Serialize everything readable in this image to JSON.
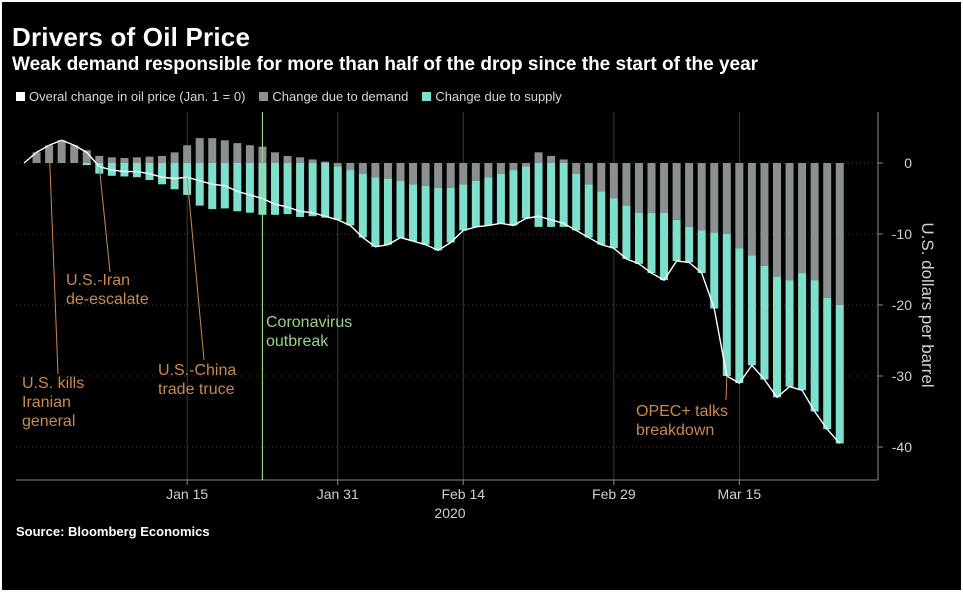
{
  "chart_data": {
    "type": "bar",
    "title": "Drivers of Oil Price",
    "subtitle": "Weak demand responsible for more than half of the drop since the start of the year",
    "legend": [
      "Overal change in oil price (Jan. 1 = 0)",
      "Change due to demand",
      "Change due to supply"
    ],
    "ylabel": "U.S. dollars per barrel",
    "xlabel": "2020",
    "ylim": [
      -42,
      8
    ],
    "yticks": [
      0,
      -10,
      -20,
      -30,
      -40
    ],
    "xtick_labels": [
      "Jan 15",
      "Jan 31",
      "Feb 14",
      "Feb 29",
      "Mar 15"
    ],
    "xtick_index": [
      13,
      25,
      35,
      47,
      57
    ],
    "source": "Source: Bloomberg Economics",
    "colors": {
      "overall": "#ffffff",
      "demand": "#8a8f8f",
      "supply": "#7ee0cc",
      "annotation": "#c98a4e",
      "coronavirus": "#9bd18a"
    },
    "series": [
      {
        "name": "Overal change in oil price (Jan. 1 = 0)",
        "values": [
          0,
          1.5,
          2.5,
          3.2,
          2.5,
          1.5,
          -0.5,
          -1.0,
          -1.2,
          -1.2,
          -1.5,
          -2.0,
          -2.2,
          -2.0,
          -2.5,
          -3.0,
          -3.2,
          -4.0,
          -4.5,
          -5.0,
          -5.8,
          -6.2,
          -6.8,
          -7.0,
          -7.5,
          -8.0,
          -8.8,
          -10.5,
          -11.8,
          -11.5,
          -10.5,
          -11.0,
          -11.5,
          -12.3,
          -11.2,
          -9.5,
          -9.0,
          -8.8,
          -8.5,
          -8.8,
          -7.8,
          -7.5,
          -8.0,
          -8.5,
          -9.5,
          -10.5,
          -11.5,
          -12.0,
          -13.5,
          -14.2,
          -15.5,
          -16.5,
          -13.8,
          -14.0,
          -15.5,
          -20.5,
          -30.0,
          -31.0,
          -28.5,
          -30.5,
          -33.0,
          -31.5,
          -32.0,
          -35.0,
          -37.5,
          -39.5
        ]
      },
      {
        "name": "Change due to demand",
        "values": [
          0,
          1.5,
          2.5,
          3.2,
          2.5,
          1.8,
          1.0,
          0.8,
          0.7,
          0.8,
          0.9,
          1.0,
          1.5,
          2.5,
          3.5,
          3.5,
          3.2,
          2.8,
          2.5,
          2.3,
          1.5,
          1.0,
          0.8,
          0.5,
          0.2,
          -0.5,
          -1.0,
          -1.5,
          -2.0,
          -2.2,
          -2.5,
          -3.0,
          -3.2,
          -3.5,
          -3.5,
          -3.0,
          -2.5,
          -2.0,
          -1.5,
          -1.0,
          -0.5,
          1.5,
          1.0,
          0.5,
          -1.5,
          -3.0,
          -4.0,
          -5.0,
          -6.0,
          -7.0,
          -7.0,
          -7.0,
          -8.0,
          -9.0,
          -9.5,
          -9.8,
          -10.0,
          -12.0,
          -13.0,
          -14.5,
          -16.0,
          -16.5,
          -15.5,
          -16.5,
          -19.0,
          -20.0
        ]
      },
      {
        "name": "Change due to supply",
        "values": [
          0,
          0,
          0,
          0,
          0,
          -0.3,
          -1.5,
          -1.8,
          -1.9,
          -2.0,
          -2.4,
          -3.0,
          -3.7,
          -4.5,
          -6.0,
          -6.5,
          -6.4,
          -6.8,
          -7.0,
          -7.3,
          -7.3,
          -7.2,
          -7.6,
          -7.5,
          -7.7,
          -7.5,
          -7.8,
          -9.0,
          -9.8,
          -9.3,
          -8.0,
          -8.0,
          -8.3,
          -8.8,
          -7.7,
          -6.5,
          -6.5,
          -6.8,
          -7.0,
          -7.8,
          -7.3,
          -9.0,
          -9.0,
          -9.0,
          -8.0,
          -7.5,
          -7.5,
          -7.0,
          -7.5,
          -7.2,
          -8.5,
          -9.5,
          -5.8,
          -5.0,
          -6.0,
          -10.7,
          -20.0,
          -19.0,
          -15.5,
          -16.0,
          -17.0,
          -15.0,
          -16.5,
          -18.5,
          -18.5,
          -19.5
        ]
      }
    ],
    "annotations": [
      {
        "text": [
          "U.S. kills",
          "Iranian",
          "general"
        ],
        "index": 2
      },
      {
        "text": [
          "U.S.-Iran",
          "de-escalate"
        ],
        "index": 6
      },
      {
        "text": [
          "U.S.-China",
          "trade truce"
        ],
        "index": 13
      },
      {
        "text": [
          "Coronavirus",
          "outbreak"
        ],
        "index": 19
      },
      {
        "text": [
          "OPEC+ talks",
          "breakdown"
        ],
        "index": 56
      }
    ]
  }
}
